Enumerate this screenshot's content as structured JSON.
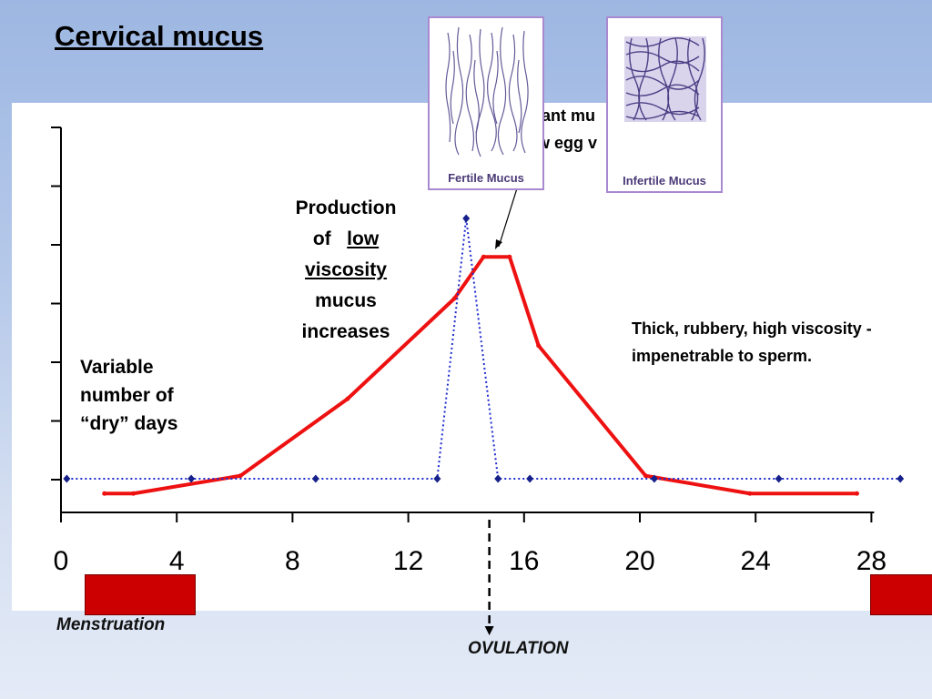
{
  "title": "Cervical mucus",
  "annotations": {
    "dry_days": [
      "Variable",
      "number of",
      "“dry” days"
    ],
    "production_line1": "Production",
    "production_of": "of",
    "production_low": "low",
    "production_viscosity": "viscosity",
    "production_line4": "mucus",
    "production_line5": "increases",
    "thick": "Thick, rubbery, high viscosity - impenetrable to sperm.",
    "partial_top": "lant mu\nw egg v"
  },
  "labels": {
    "menstruation": "Menstruation",
    "ovulation": "OVULATION"
  },
  "images": {
    "fertile": "Fertile Mucus",
    "infertile": "Infertile Mucus"
  },
  "colors": {
    "mucus_line": "#ee1111",
    "lh_line": "#1f2ccf",
    "menstruation_bar": "#cc0000"
  },
  "chart_data": {
    "type": "line",
    "xlim": [
      0,
      28
    ],
    "xticks": [
      0,
      4,
      8,
      12,
      16,
      20,
      24,
      28
    ],
    "y_ticks_labeled": false,
    "series": [
      {
        "style": "solid-red",
        "points": [
          [
            1.5,
            0.3
          ],
          [
            2.5,
            0.3
          ],
          [
            6.2,
            0.9
          ],
          [
            9.9,
            3.5
          ],
          [
            13.6,
            6.9
          ],
          [
            14.6,
            8.3
          ],
          [
            15.5,
            8.3
          ],
          [
            16.5,
            5.3
          ],
          [
            20.2,
            0.9
          ],
          [
            23.8,
            0.3
          ],
          [
            27.5,
            0.3
          ]
        ]
      },
      {
        "style": "dotted-blue",
        "points": [
          [
            0.2,
            0.8
          ],
          [
            4.5,
            0.8
          ],
          [
            8.8,
            0.8
          ],
          [
            13.0,
            0.8
          ],
          [
            14.0,
            9.6
          ],
          [
            15.1,
            0.8
          ],
          [
            16.2,
            0.8
          ],
          [
            20.5,
            0.8
          ],
          [
            24.8,
            0.8
          ],
          [
            29.0,
            0.8
          ]
        ]
      }
    ],
    "ovulation_day": 14.8,
    "menstruation_ranges": [
      [
        0.9,
        4.7
      ],
      [
        28.1,
        30.5
      ]
    ]
  }
}
